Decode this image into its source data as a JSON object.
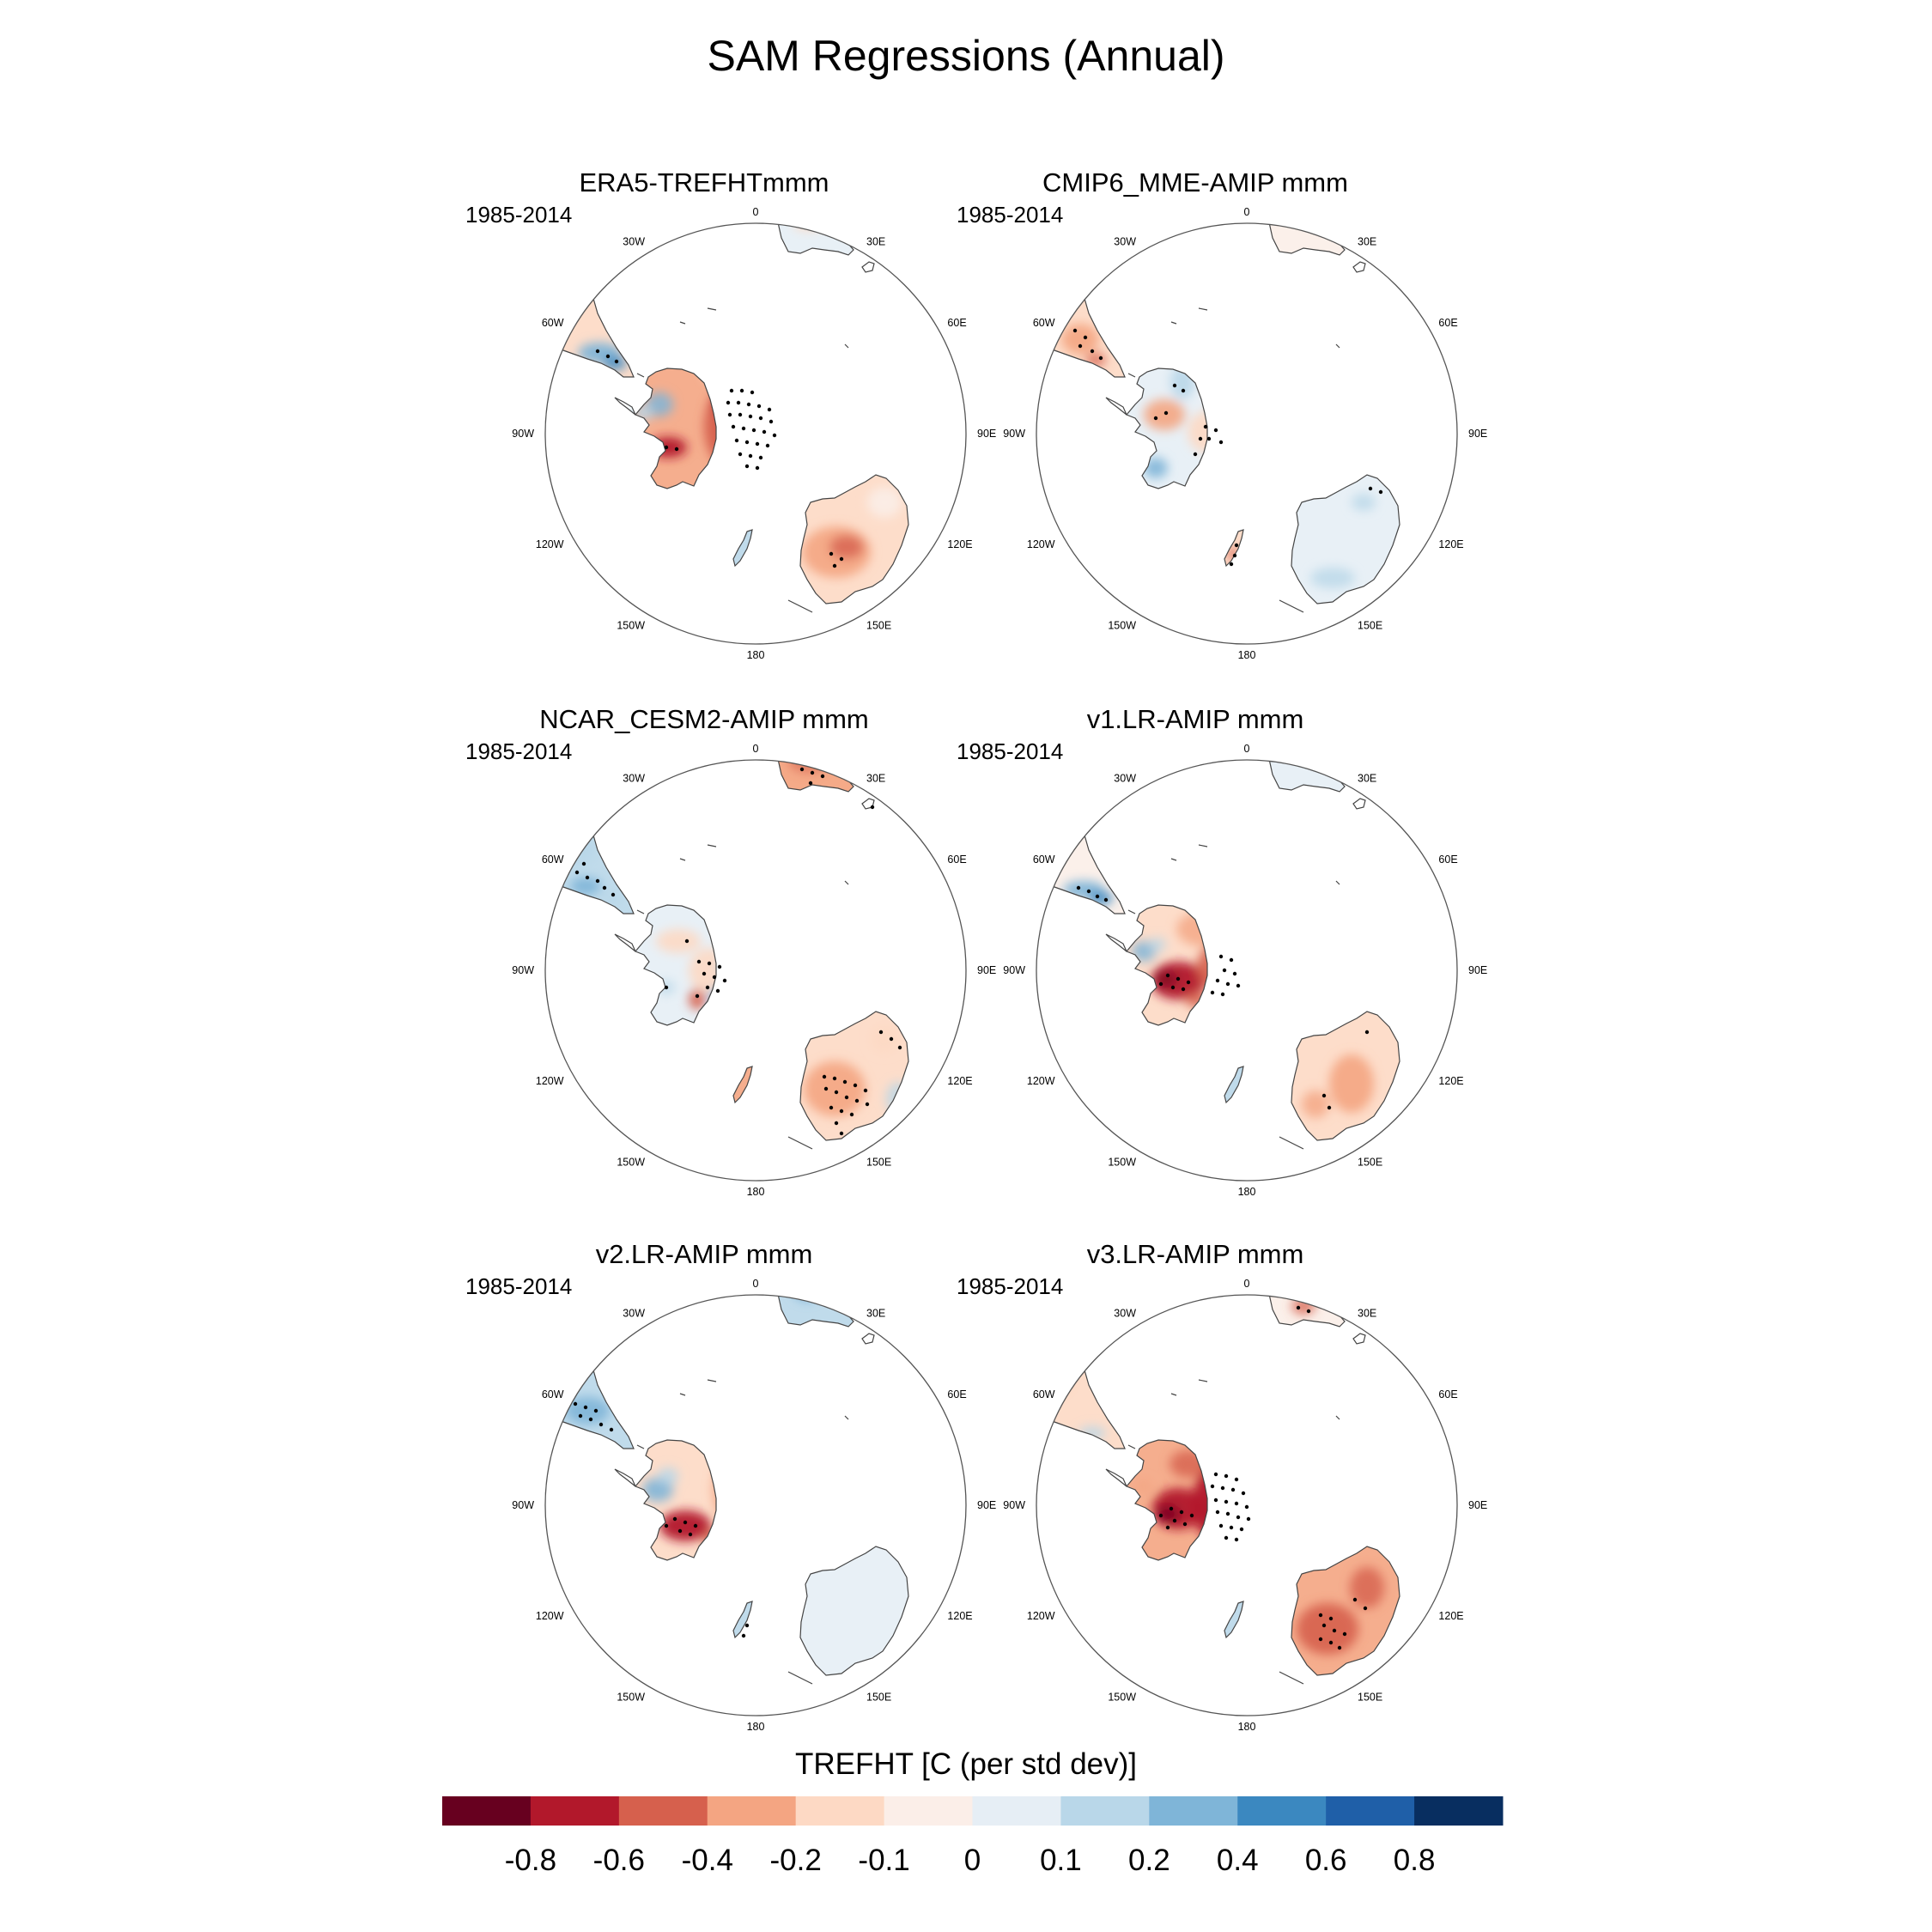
{
  "figure": {
    "title": "SAM Regressions (Annual)"
  },
  "panels": [
    {
      "title": "ERA5-TREFHTmmm",
      "period": "1985-2014",
      "pattern": "era5"
    },
    {
      "title": "CMIP6_MME-AMIP  mmm",
      "period": "1985-2014",
      "pattern": "cmip6"
    },
    {
      "title": "NCAR_CESM2-AMIP  mmm",
      "period": "1985-2014",
      "pattern": "cesm2"
    },
    {
      "title": "v1.LR-AMIP  mmm",
      "period": "1985-2014",
      "pattern": "v1"
    },
    {
      "title": "v2.LR-AMIP  mmm",
      "period": "1985-2014",
      "pattern": "v2"
    },
    {
      "title": "v3.LR-AMIP  mmm",
      "period": "1985-2014",
      "pattern": "v3"
    }
  ],
  "map": {
    "projection": "south-polar-stereographic",
    "longitude_labels": [
      "0",
      "30E",
      "60E",
      "90E",
      "120E",
      "150E",
      "180",
      "150W",
      "120W",
      "90W",
      "60W",
      "30W"
    ]
  },
  "colorbar": {
    "title": "TREFHT [C (per std dev)]",
    "tick_labels": [
      "-0.8",
      "-0.6",
      "-0.4",
      "-0.2",
      "-0.1",
      "0",
      "0.1",
      "0.2",
      "0.4",
      "0.6",
      "0.8"
    ],
    "colors": [
      "#67001f",
      "#b2182b",
      "#d6604d",
      "#f4a582",
      "#fdd9c4",
      "#fbeee8",
      "#e6eef5",
      "#b9d7e9",
      "#7fb5d8",
      "#3b88c0",
      "#1f5fa8",
      "#082e60"
    ]
  }
}
